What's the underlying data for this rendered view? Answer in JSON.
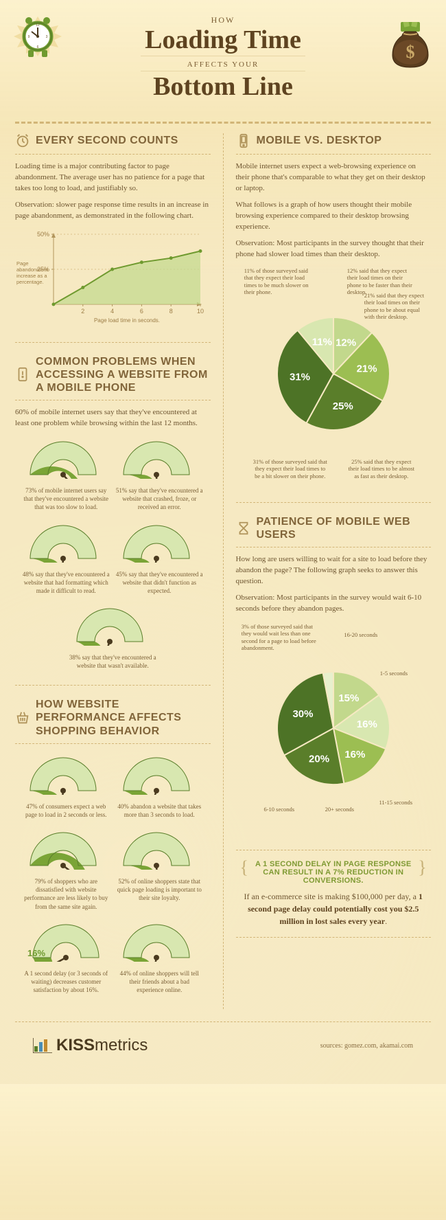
{
  "colors": {
    "bg": "#f6e9c2",
    "text": "#634b2a",
    "accent": "#7f9a33",
    "dash": "#d2b577",
    "green_dark": "#4d7326",
    "green_mid": "#6f9a2f",
    "green_light": "#9cbe52",
    "green_pale": "#c2d88c",
    "green_palest": "#d8e7b0"
  },
  "header": {
    "how": "HOW",
    "title1": "Loading Time",
    "affects": "AFFECTS YOUR",
    "title2": "Bottom Line"
  },
  "sec1": {
    "title": "EVERY SECOND COUNTS",
    "p1": "Loading time is a major contributing factor to page abandonment. The average user has no patience for a page that takes too long to load, and justifiably so.",
    "p2": "Observation: slower page response time results in an increase in page abandonment, as demonstrated in the following chart.",
    "chart": {
      "ylabel": "Page abandonment increase as a percentage.",
      "xlabel": "Page load time in seconds.",
      "yticks": [
        "25%",
        "50%"
      ],
      "xticks": [
        "2",
        "4",
        "6",
        "8",
        "10"
      ],
      "ylim": [
        0,
        50
      ],
      "xlim": [
        0,
        10
      ],
      "points": [
        [
          0,
          0
        ],
        [
          2,
          12
        ],
        [
          4,
          25
        ],
        [
          6,
          30
        ],
        [
          8,
          33
        ],
        [
          10,
          38
        ]
      ],
      "line_color": "#6f9a2f",
      "fill_color": "#c2d88c"
    }
  },
  "sec2": {
    "title": "COMMON PROBLEMS WHEN ACCESSING A WEBSITE FROM A MOBILE PHONE",
    "intro": "60% of mobile internet users say that they've encountered at least one problem while browsing within the last 12 months.",
    "gauges": [
      {
        "pct": 73,
        "label": "73%",
        "caption": "73% of mobile internet users say that they've encountered a website that was too slow to load."
      },
      {
        "pct": 51,
        "label": "51%",
        "caption": "51% say that they've encountered a website that crashed, froze, or received an error."
      },
      {
        "pct": 48,
        "label": "48%",
        "caption": "48% say that they've encountered a website that had formatting which made it difficult to read."
      },
      {
        "pct": 45,
        "label": "45%",
        "caption": "45% say that they've encountered a website that didn't function as expected."
      },
      {
        "pct": 38,
        "label": "38%",
        "caption": "38% say that they've encountered a website that wasn't available."
      }
    ],
    "gauge_style": {
      "track_color": "#d8e7b0",
      "fill_color": "#7aa436",
      "text_color": "#ffffff",
      "needle_color": "#4a3a1f"
    }
  },
  "sec3": {
    "title": "HOW WEBSITE PERFORMANCE AFFECTS SHOPPING BEHAVIOR",
    "gauges": [
      {
        "pct": 47,
        "label": "47%",
        "caption": "47% of consumers expect a web page to load in 2 seconds or less."
      },
      {
        "pct": 40,
        "label": "40%",
        "caption": "40% abandon a website that takes more than 3 seconds to load."
      },
      {
        "pct": 79,
        "label": "79%",
        "caption": "79% of shoppers who are dissatisfied with website performance are less likely to buy from the same site again."
      },
      {
        "pct": 52,
        "label": "52%",
        "caption": "52% of online shoppers state that quick page loading is important to their site loyalty."
      },
      {
        "pct": 16,
        "label": "16%",
        "side": true,
        "caption": "A 1 second delay (or 3 seconds of waiting) decreases customer satisfaction by about 16%."
      },
      {
        "pct": 44,
        "label": "44%",
        "caption": "44% of online shoppers will tell their friends about a bad experience online."
      }
    ]
  },
  "sec4": {
    "title": "MOBILE VS. DESKTOP",
    "p1": "Mobile internet users expect a web-browsing experience on their phone that's comparable to what they get on their desktop or laptop.",
    "p2": "What follows is a graph of how users thought their mobile browsing experience compared to their desktop browsing experience.",
    "p3": "Observation: Most participants in the survey thought that their phone had slower load times than their desktop.",
    "pie": {
      "slices": [
        {
          "value": 12,
          "label": "12%",
          "color": "#c2d88c",
          "caption": "12% said that they expect their load times on their phone to be faster than their desktop."
        },
        {
          "value": 21,
          "label": "21%",
          "color": "#9cbe52",
          "caption": "21% said that they expect their load times on their phone to be about equal with their desktop."
        },
        {
          "value": 25,
          "label": "25%",
          "color": "#5a7e2a",
          "caption": "25% said that they expect their load times to be almost as fast as their desktop."
        },
        {
          "value": 31,
          "label": "31%",
          "color": "#4d7326",
          "caption": "31% of those surveyed said that they expect their load times to be a bit slower on their phone."
        },
        {
          "value": 11,
          "label": "11%",
          "color": "#d8e7b0",
          "caption": "11% of those surveyed said that they expect their load times to be much slower on their phone."
        }
      ]
    }
  },
  "sec5": {
    "title": "PATIENCE OF MOBILE WEB USERS",
    "p1": "How long are users willing to wait for a site to load before they abandon the page? The following graph seeks to answer this question.",
    "p2": "Observation: Most participants in the survey would wait 6-10 seconds before they abandon pages.",
    "pie": {
      "slices": [
        {
          "value": 15,
          "label": "15%",
          "color": "#c2d88c",
          "caption": "16-20 seconds"
        },
        {
          "value": 16,
          "label": "16%",
          "color": "#d8e7b0",
          "caption": "1-5 seconds"
        },
        {
          "value": 16,
          "label": "16%",
          "color": "#9cbe52",
          "caption": "11-15 seconds"
        },
        {
          "value": 20,
          "label": "20%",
          "color": "#5a7e2a",
          "caption": "20+ seconds"
        },
        {
          "value": 30,
          "label": "30%",
          "color": "#4d7326",
          "caption": "6-10 seconds"
        },
        {
          "value": 3,
          "label": "",
          "color": "#e8f0cd",
          "caption": "3% of those surveyed said that they would wait less than one second for a page to load before abandonment."
        }
      ]
    }
  },
  "callout": {
    "hdr": "A 1 SECOND DELAY IN PAGE RESPONSE CAN RESULT IN A 7% REDUCTION IN CONVERSIONS.",
    "body_pre": "If an e-commerce site is making $100,000 per day, a ",
    "body_bold": "1 second page delay could potentially cost you $2.5 million in lost sales every year",
    "body_post": "."
  },
  "footer": {
    "logo_bold": "KISS",
    "logo_rest": "metrics",
    "sources": "sources: gomez.com, akamai.com"
  }
}
